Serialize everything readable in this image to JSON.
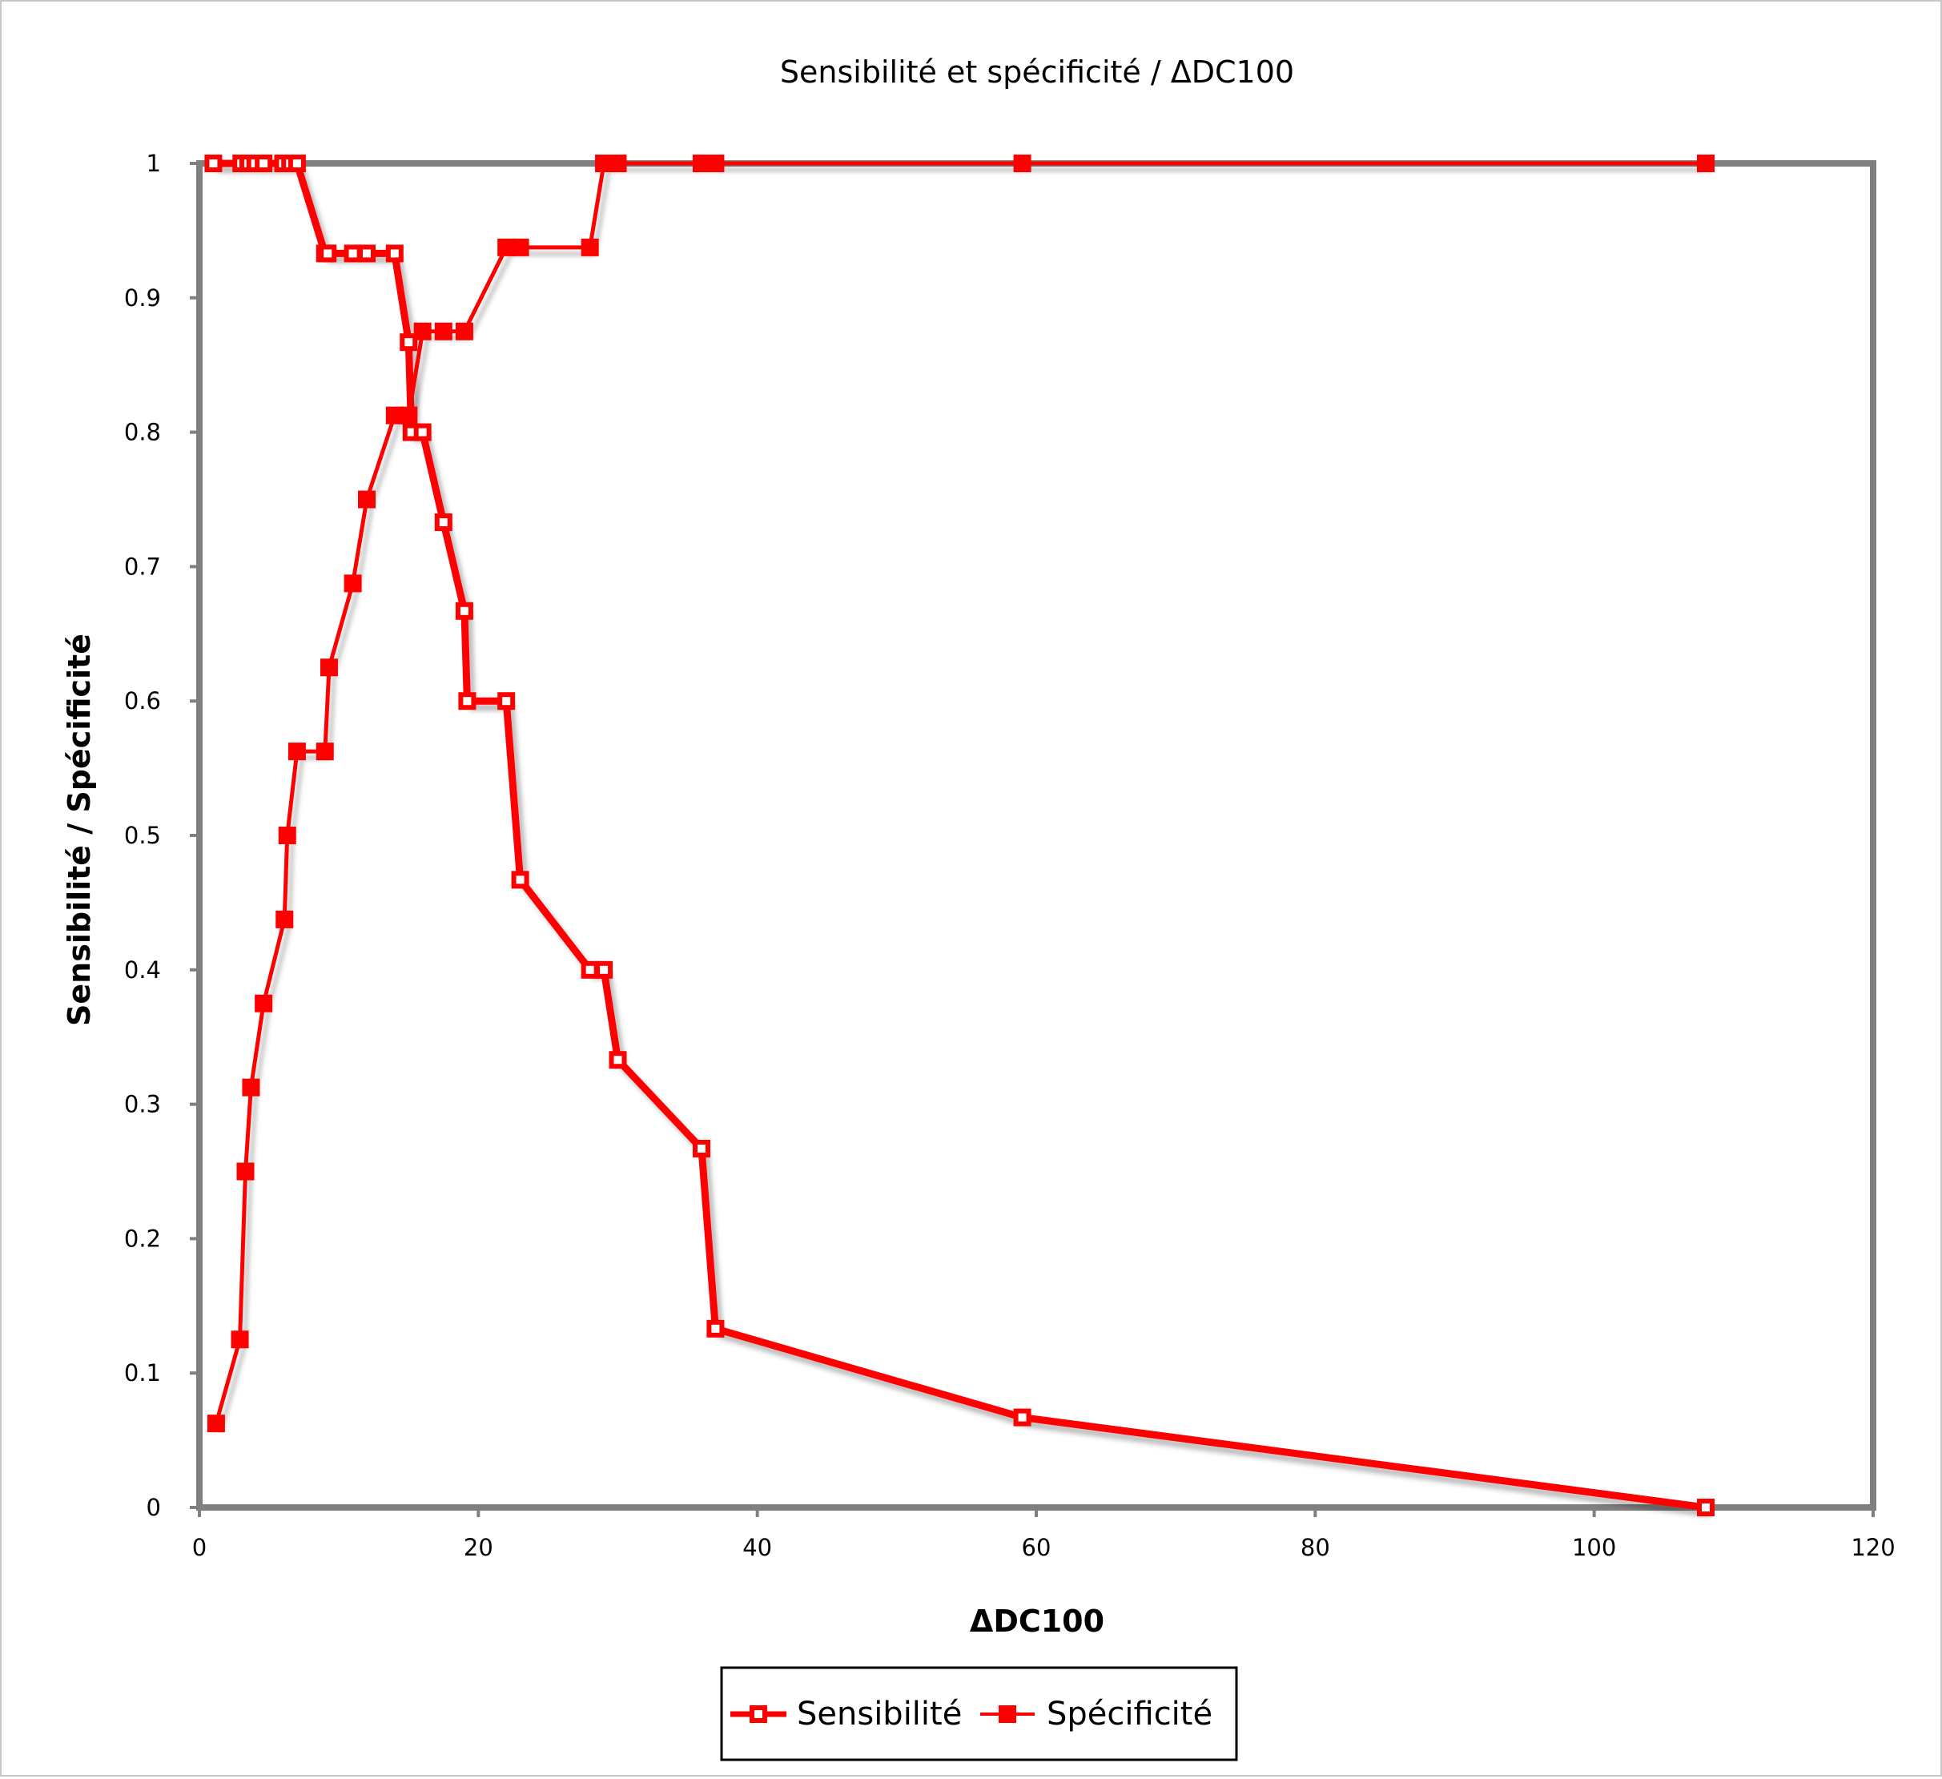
{
  "chart_data": {
    "type": "line",
    "title": "Sensibilité et spécificité / ΔDC100",
    "xlabel": "ΔDC100",
    "ylabel": "Sensibilité / Spécificité",
    "xlim": [
      0,
      120
    ],
    "ylim": [
      0,
      1
    ],
    "xticks": [
      0,
      20,
      40,
      60,
      80,
      100,
      120
    ],
    "yticks": [
      0,
      0.1,
      0.2,
      0.3,
      0.4,
      0.5,
      0.6,
      0.7,
      0.8,
      0.9,
      1
    ],
    "grid": false,
    "legend_position": "bottom",
    "series": [
      {
        "name": "Sensibilité",
        "color": "#ff0000",
        "marker": "hollow-square",
        "x": [
          1,
          3,
          3.5,
          4,
          4.6,
          6,
          6.5,
          7,
          9,
          9.2,
          11,
          12,
          14,
          15,
          15.2,
          16,
          17.5,
          19,
          19.2,
          22,
          23,
          28,
          29,
          30,
          36,
          37,
          59,
          108
        ],
        "y": [
          1,
          1,
          1,
          1,
          1,
          1,
          1,
          1,
          0.933,
          0.933,
          0.933,
          0.933,
          0.933,
          0.867,
          0.8,
          0.8,
          0.733,
          0.667,
          0.6,
          0.6,
          0.467,
          0.4,
          0.4,
          0.333,
          0.267,
          0.133,
          0.067,
          0
        ]
      },
      {
        "name": "Spécificité",
        "color": "#ff0000",
        "marker": "filled-square",
        "x": [
          1.2,
          2.9,
          3.3,
          3.7,
          4.6,
          6.1,
          6.3,
          7,
          9,
          9.3,
          11,
          12,
          14,
          15,
          16,
          17.5,
          19,
          22,
          23,
          28,
          29,
          30,
          36,
          37,
          59,
          108
        ],
        "y": [
          0.0625,
          0.125,
          0.25,
          0.3125,
          0.375,
          0.4375,
          0.5,
          0.5625,
          0.5625,
          0.625,
          0.6875,
          0.75,
          0.8125,
          0.8125,
          0.875,
          0.875,
          0.875,
          0.9375,
          0.9375,
          0.9375,
          1,
          1,
          1,
          1,
          1,
          1
        ]
      }
    ]
  }
}
